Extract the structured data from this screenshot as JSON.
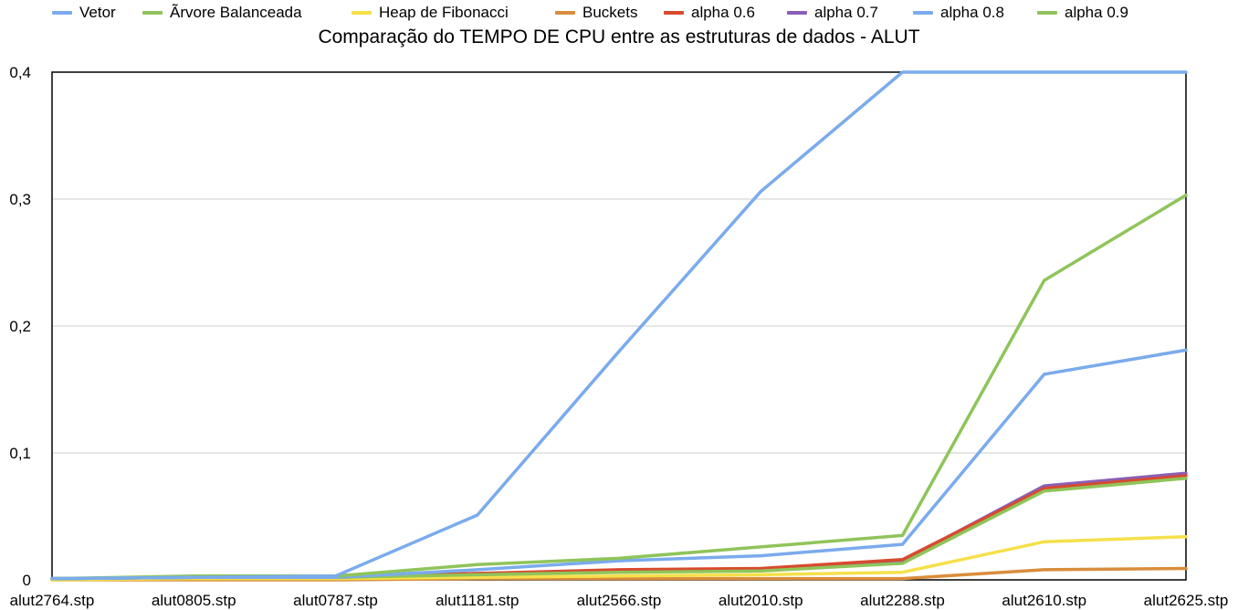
{
  "chart_data": {
    "type": "line",
    "title": "Comparação do TEMPO DE CPU entre as estruturas de dados - ALUT",
    "xlabel": "",
    "ylabel": "",
    "ylim": [
      0,
      0.4
    ],
    "yticks": [
      "0",
      "0,1",
      "0,2",
      "0,3",
      "0,4"
    ],
    "grid": true,
    "legend_position": "top",
    "categories": [
      "alut2764.stp",
      "alut0805.stp",
      "alut0787.stp",
      "alut1181.stp",
      "alut2566.stp",
      "alut2010.stp",
      "alut2288.stp",
      "alut2610.stp",
      "alut2625.stp"
    ],
    "series": [
      {
        "name": "Vetor",
        "color": "#7aabec",
        "values": [
          0.001,
          0.002,
          0.003,
          0.051,
          0.18,
          0.306,
          0.4,
          0.4,
          0.4
        ]
      },
      {
        "name": "Ãrvore Balanceada",
        "color": "#8fc45a",
        "values": [
          0.001,
          0.003,
          0.003,
          0.012,
          0.017,
          0.026,
          0.035,
          0.236,
          0.303
        ]
      },
      {
        "name": "Heap de Fibonacci",
        "color": "#f6e04a",
        "values": [
          0.0,
          0.001,
          0.001,
          0.002,
          0.003,
          0.004,
          0.006,
          0.03,
          0.034
        ]
      },
      {
        "name": "Buckets",
        "color": "#d98d3c",
        "values": [
          0.0,
          0.0,
          0.0,
          0.001,
          0.001,
          0.001,
          0.001,
          0.008,
          0.009
        ]
      },
      {
        "name": "alpha 0.6",
        "color": "#d84a2f",
        "values": [
          0.001,
          0.002,
          0.002,
          0.005,
          0.008,
          0.009,
          0.016,
          0.072,
          0.082
        ]
      },
      {
        "name": "alpha 0.7",
        "color": "#8a5fb5",
        "values": [
          0.001,
          0.002,
          0.002,
          0.005,
          0.007,
          0.008,
          0.015,
          0.074,
          0.084
        ]
      },
      {
        "name": "alpha 0.8",
        "color": "#7aabec",
        "values": [
          0.001,
          0.002,
          0.002,
          0.008,
          0.015,
          0.019,
          0.028,
          0.162,
          0.181
        ]
      },
      {
        "name": "alpha 0.9",
        "color": "#8fc45a",
        "values": [
          0.001,
          0.002,
          0.002,
          0.004,
          0.006,
          0.007,
          0.013,
          0.07,
          0.08
        ]
      }
    ]
  }
}
